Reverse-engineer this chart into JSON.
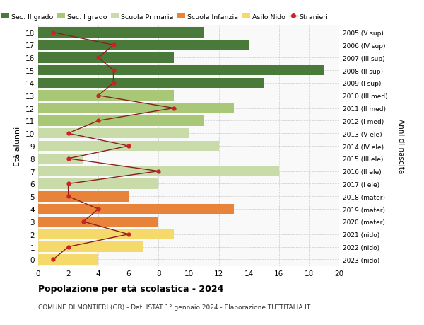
{
  "ages": [
    0,
    1,
    2,
    3,
    4,
    5,
    6,
    7,
    8,
    9,
    10,
    11,
    12,
    13,
    14,
    15,
    16,
    17,
    18
  ],
  "right_labels": [
    "2023 (nido)",
    "2022 (nido)",
    "2021 (nido)",
    "2020 (mater)",
    "2019 (mater)",
    "2018 (mater)",
    "2017 (I ele)",
    "2016 (II ele)",
    "2015 (III ele)",
    "2014 (IV ele)",
    "2013 (V ele)",
    "2012 (I med)",
    "2011 (II med)",
    "2010 (III med)",
    "2009 (I sup)",
    "2008 (II sup)",
    "2007 (III sup)",
    "2006 (IV sup)",
    "2005 (V sup)"
  ],
  "bar_values": [
    4,
    7,
    9,
    8,
    13,
    6,
    8,
    16,
    3,
    12,
    10,
    11,
    13,
    9,
    15,
    19,
    9,
    14,
    11
  ],
  "bar_colors": [
    "#f5d96b",
    "#f5d96b",
    "#f5d96b",
    "#e8843a",
    "#e8843a",
    "#e8843a",
    "#c8dba8",
    "#c8dba8",
    "#c8dba8",
    "#c8dba8",
    "#c8dba8",
    "#a8c878",
    "#a8c878",
    "#a8c878",
    "#4a7a3a",
    "#4a7a3a",
    "#4a7a3a",
    "#4a7a3a",
    "#4a7a3a"
  ],
  "stranieri_values": [
    1,
    2,
    6,
    3,
    4,
    2,
    2,
    8,
    2,
    6,
    2,
    4,
    9,
    4,
    5,
    5,
    4,
    5,
    1
  ],
  "legend_labels": [
    "Sec. II grado",
    "Sec. I grado",
    "Scuola Primaria",
    "Scuola Infanzia",
    "Asilo Nido",
    "Stranieri"
  ],
  "legend_colors": [
    "#4a7a3a",
    "#a8c878",
    "#c8dba8",
    "#e8843a",
    "#f5d96b",
    "#aa2222"
  ],
  "title": "Popolazione per età scolastica - 2024",
  "subtitle": "COMUNE DI MONTIERI (GR) - Dati ISTAT 1° gennaio 2024 - Elaborazione TUTTITALIA.IT",
  "ylabel": "Età alunni",
  "right_ylabel": "Anni di nascita",
  "xlim": [
    0,
    20
  ],
  "xticks": [
    0,
    2,
    4,
    6,
    8,
    10,
    12,
    14,
    16,
    18,
    20
  ],
  "bg_color": "#ffffff",
  "plot_bg_color": "#f9f9f9",
  "grid_color": "#cccccc",
  "stranieri_line_color": "#8b2020",
  "stranieri_marker_color": "#cc2222"
}
